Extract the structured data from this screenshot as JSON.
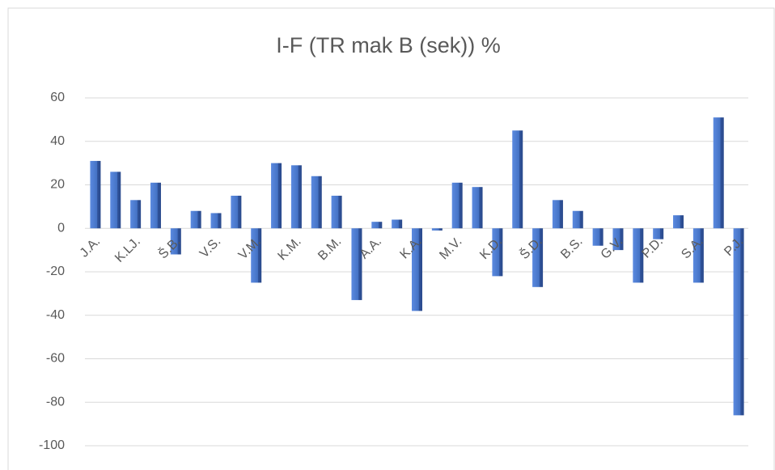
{
  "chart_data": {
    "type": "bar",
    "title": "I-F (TR mak B (sek)) %",
    "categories": [
      "J.A.",
      null,
      "K.LJ.",
      null,
      "Š.B.",
      null,
      "V.S.",
      null,
      "V.M.",
      null,
      "K.M.",
      null,
      "B.M.",
      null,
      "A.A.",
      null,
      "K.A.",
      null,
      "M.V.",
      null,
      "K.D.",
      null,
      "Š.D.",
      null,
      "B.S.",
      null,
      "G.V.",
      null,
      "P.D.",
      null,
      "S.A.",
      null,
      "P.J."
    ],
    "values": [
      31,
      26,
      13,
      21,
      -12,
      8,
      7,
      15,
      -25,
      30,
      29,
      24,
      15,
      -33,
      3,
      4,
      -38,
      -1,
      21,
      19,
      -22,
      45,
      -27,
      13,
      8,
      -8,
      -10,
      -25,
      -5,
      6,
      -25,
      51,
      -86
    ],
    "color": "#4472c4",
    "ylim": [
      -100,
      60
    ],
    "yticks": [
      -100,
      -80,
      -60,
      -40,
      -20,
      0,
      20,
      40,
      60
    ],
    "grid": true
  }
}
